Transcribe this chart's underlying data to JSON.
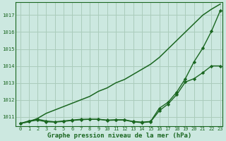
{
  "title": "Graphe pression niveau de la mer (hPa)",
  "background_color": "#cce8e0",
  "grid_color": "#aaccbb",
  "line_color": "#1a6620",
  "xlim_min": -0.5,
  "xlim_max": 23.3,
  "ylim_min": 1010.45,
  "ylim_max": 1017.75,
  "yticks": [
    1011,
    1012,
    1013,
    1014,
    1015,
    1016,
    1017
  ],
  "xticks": [
    0,
    1,
    2,
    3,
    4,
    5,
    6,
    7,
    8,
    9,
    10,
    11,
    12,
    13,
    14,
    15,
    16,
    17,
    18,
    19,
    20,
    21,
    22,
    23
  ],
  "series": [
    {
      "x": [
        0,
        1,
        2,
        3,
        4,
        5,
        6,
        7,
        8,
        9,
        10,
        11,
        12,
        13,
        14,
        15,
        16,
        17,
        18,
        19,
        20,
        21,
        22,
        23
      ],
      "y": [
        1010.6,
        1010.7,
        1010.9,
        1011.2,
        1011.4,
        1011.6,
        1011.8,
        1012.0,
        1012.2,
        1012.5,
        1012.7,
        1013.0,
        1013.2,
        1013.5,
        1013.8,
        1014.1,
        1014.5,
        1015.0,
        1015.5,
        1016.0,
        1016.5,
        1017.0,
        1017.35,
        1017.65
      ],
      "marker": null,
      "markersize": 0,
      "linewidth": 1.1
    },
    {
      "x": [
        0,
        1,
        2,
        3,
        4,
        5,
        6,
        7,
        8,
        9,
        10,
        11,
        12,
        13,
        14,
        15,
        16,
        17,
        18,
        19,
        20,
        21,
        22,
        23
      ],
      "y": [
        1010.6,
        1010.75,
        1010.85,
        1010.75,
        1010.7,
        1010.75,
        1010.8,
        1010.85,
        1010.85,
        1010.85,
        1010.8,
        1010.82,
        1010.82,
        1010.72,
        1010.68,
        1010.72,
        1011.5,
        1011.85,
        1012.45,
        1013.25,
        1014.25,
        1015.05,
        1016.05,
        1017.25
      ],
      "marker": "D",
      "markersize": 2.2,
      "linewidth": 1.0
    },
    {
      "x": [
        0,
        1,
        2,
        3,
        4,
        5,
        6,
        7,
        8,
        9,
        10,
        11,
        12,
        13,
        14,
        15,
        16,
        17,
        18,
        19,
        20,
        21,
        22,
        23
      ],
      "y": [
        1010.6,
        1010.72,
        1010.8,
        1010.7,
        1010.68,
        1010.72,
        1010.78,
        1010.82,
        1010.85,
        1010.85,
        1010.78,
        1010.8,
        1010.8,
        1010.7,
        1010.65,
        1010.7,
        1011.35,
        1011.75,
        1012.3,
        1013.05,
        1013.25,
        1013.6,
        1014.0,
        1014.0
      ],
      "marker": "D",
      "markersize": 2.2,
      "linewidth": 1.0
    }
  ]
}
